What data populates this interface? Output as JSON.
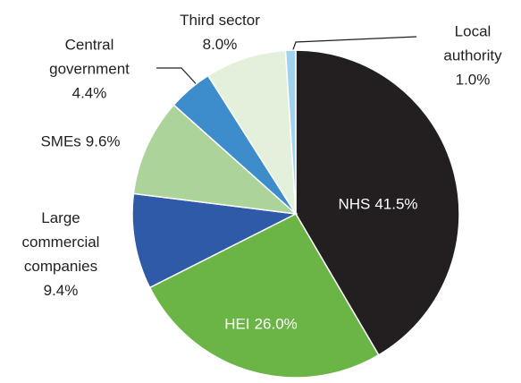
{
  "chart_data": {
    "type": "pie",
    "categories": [
      "NHS",
      "HEI",
      "Large commercial companies",
      "SMEs",
      "Central government",
      "Third sector",
      "Local authority"
    ],
    "values": [
      41.5,
      26.0,
      9.4,
      9.6,
      4.4,
      8.0,
      1.0
    ],
    "value_labels": [
      "41.5%",
      "26.0%",
      "9.4%",
      "9.6%",
      "4.4%",
      "8.0%",
      "1.0%"
    ],
    "colors": [
      "#231f20",
      "#6ab546",
      "#2e5aa8",
      "#acd49a",
      "#3d8ccc",
      "#e3f1dc",
      "#9fd3f0"
    ]
  }
}
